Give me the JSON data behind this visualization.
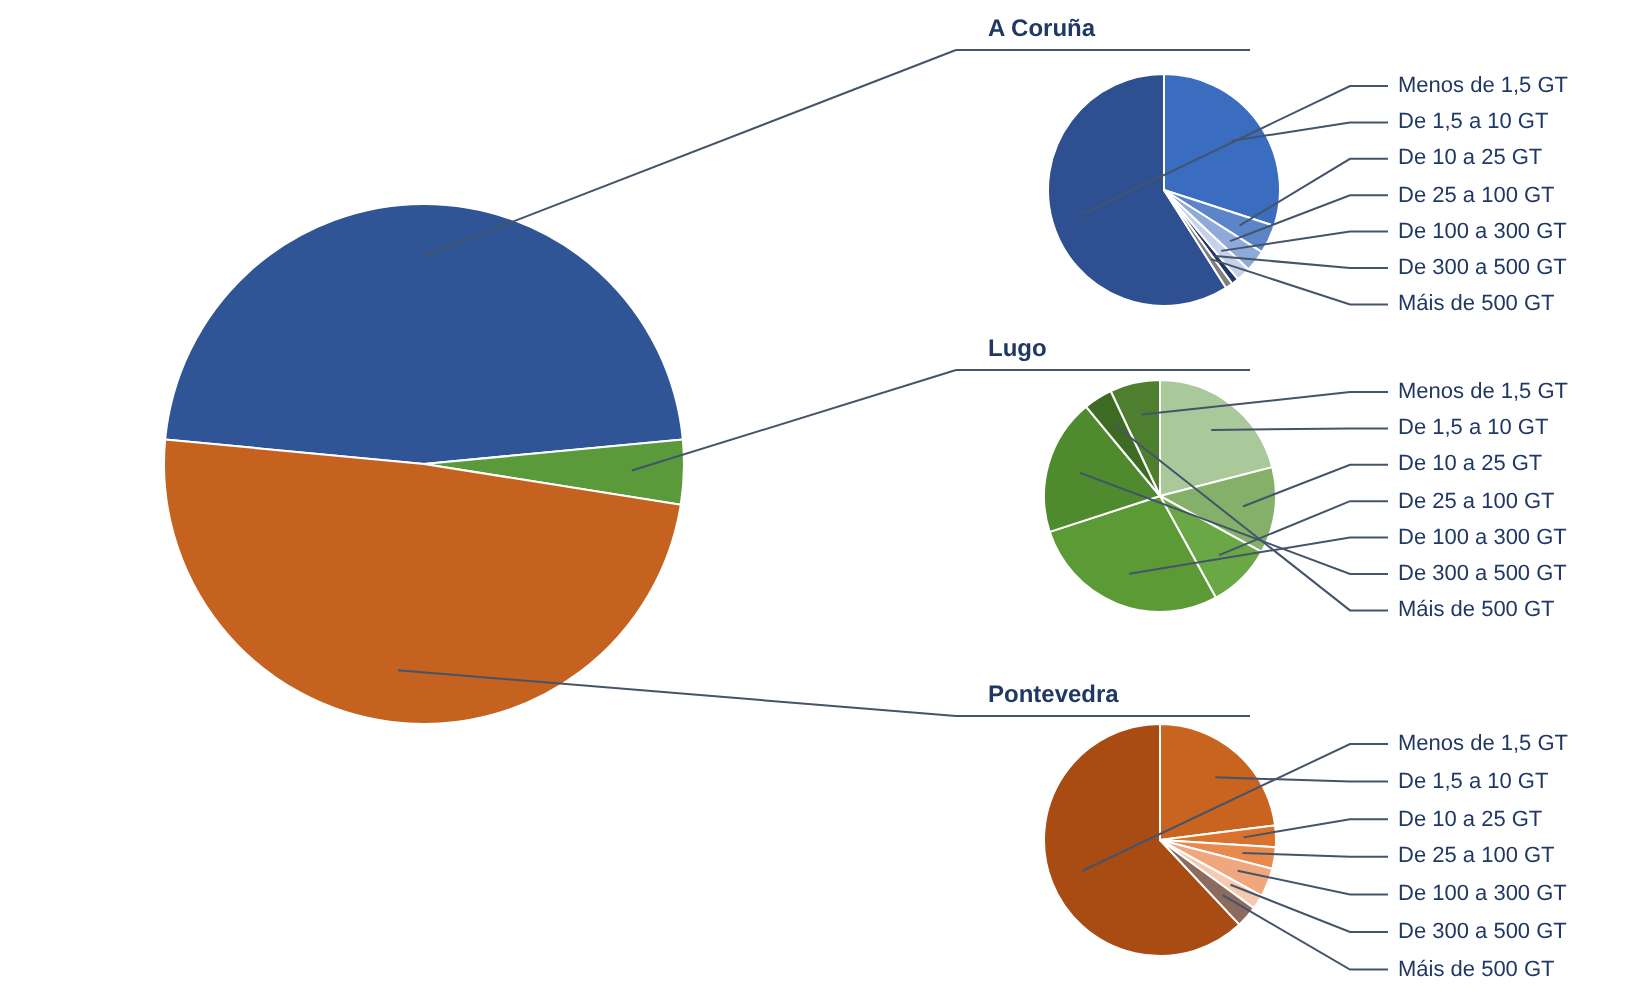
{
  "chart_data": [
    {
      "type": "pie",
      "categories": [
        null,
        null,
        null
      ],
      "values": [
        47,
        4,
        49
      ],
      "colors": [
        "#2f5597",
        "#5a9a3a",
        "#c5621f"
      ]
    },
    {
      "type": "pie",
      "title": "A Coruña",
      "categories": [
        "Menos de 1,5 GT",
        "De 1,5 a 10 GT",
        "De 10 a 25 GT",
        "De 25 a 100 GT",
        "De 100 a 300 GT",
        "De 300 a 500 GT",
        "Máis de 500 GT"
      ],
      "values": [
        59,
        30,
        4,
        3,
        2,
        1,
        1
      ],
      "colors": [
        "#2e5090",
        "#3a6cc0",
        "#5b84c9",
        "#8fa9d8",
        "#c5d2e8",
        "#1f3864",
        "#7f7f7f"
      ]
    },
    {
      "type": "pie",
      "title": "Lugo",
      "categories": [
        "Menos de 1,5 GT",
        "De 1,5 a 10 GT",
        "De 10 a 25 GT",
        "De 25 a 100 GT",
        "De 100 a 300 GT",
        "De 300 a 500 GT",
        "Máis de 500 GT"
      ],
      "values": [
        7,
        21,
        12,
        9,
        28,
        19,
        4
      ],
      "colors": [
        "#4e7f2e",
        "#a9c99a",
        "#84b069",
        "#6aa845",
        "#5c9a36",
        "#4f8a2e",
        "#3d6b23"
      ]
    },
    {
      "type": "pie",
      "title": "Pontevedra",
      "categories": [
        "Menos de 1,5 GT",
        "De 1,5 a 10 GT",
        "De 10 a 25 GT",
        "De 25 a 100 GT",
        "De 100 a 300 GT",
        "De 300 a 500 GT",
        "Máis de 500 GT"
      ],
      "values": [
        62,
        23,
        3,
        3,
        4,
        2,
        3
      ],
      "colors": [
        "#a84c13",
        "#c8641f",
        "#d9722c",
        "#e88a4e",
        "#f0a77e",
        "#f6c9b1",
        "#8c6b5f"
      ]
    }
  ]
}
